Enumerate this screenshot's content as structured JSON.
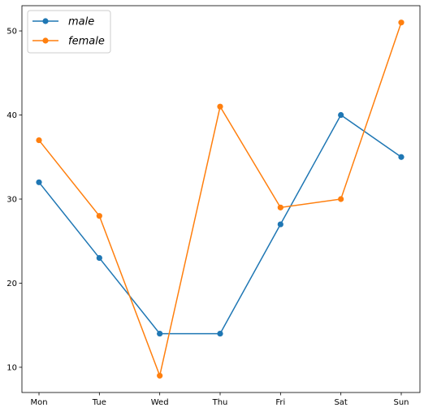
{
  "chart_data": {
    "type": "line",
    "title": "",
    "xlabel": "",
    "ylabel": "",
    "categories": [
      "Mon",
      "Tue",
      "Wed",
      "Thu",
      "Fri",
      "Sat",
      "Sun"
    ],
    "ylim": [
      7,
      53
    ],
    "yticks": [
      10,
      20,
      30,
      40,
      50
    ],
    "grid": false,
    "legend_position": "top-left",
    "series": [
      {
        "name": "male",
        "color": "#1f77b4",
        "marker": "circle",
        "values": [
          32,
          23,
          14,
          14,
          27,
          40,
          35
        ]
      },
      {
        "name": "female",
        "color": "#ff7f0e",
        "marker": "circle",
        "values": [
          37,
          28,
          9,
          41,
          29,
          30,
          51
        ]
      }
    ]
  }
}
